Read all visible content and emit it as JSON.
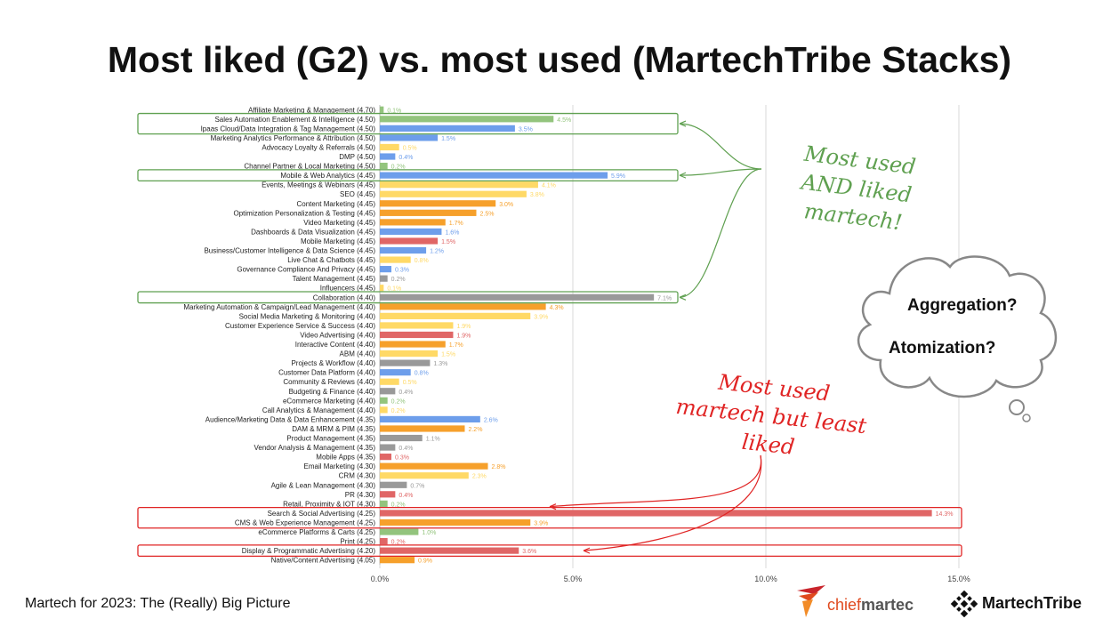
{
  "slide": {
    "title": "Most liked (G2) vs. most used (MartechTribe Stacks)",
    "footer": "Martech for 2023: The (Really) Big Picture",
    "annotation_green": "Most used AND liked martech!",
    "annotation_red": "Most used martech but least liked",
    "cloud_line_1": "Aggregation?",
    "cloud_line_2": "Atomization?",
    "logo_chiefmartec_a": "chief",
    "logo_chiefmartec_b": "martec",
    "logo_martechtribe": "MartechTribe",
    "colors": {
      "green": "#93c47d",
      "blue": "#6d9eeb",
      "yellow": "#ffd966",
      "orange": "#f6a02b",
      "red": "#e06666",
      "gray": "#999999",
      "annotation_green": "#5fa050",
      "annotation_red": "#e02424"
    }
  },
  "chart_data": {
    "type": "bar",
    "orientation": "horizontal",
    "xlim": [
      0,
      15
    ],
    "x_ticks": [
      "0.0%",
      "5.0%",
      "10.0%",
      "15.0%"
    ],
    "grid": "vertical",
    "categories": [
      "Affiliate Marketing & Management (4.70)",
      "Sales Automation Enablement & Intelligence (4.50)",
      "Ipaas Cloud/Data Integration & Tag Management (4.50)",
      "Marketing Analytics Performance & Attribution (4.50)",
      "Advocacy Loyalty & Referrals (4.50)",
      "DMP (4.50)",
      "Channel Partner & Local Marketing (4.50)",
      "Mobile & Web Analytics (4.45)",
      "Events, Meetings & Webinars (4.45)",
      "SEO (4.45)",
      "Content Marketing (4.45)",
      "Optimization Personalization & Testing (4.45)",
      "Video Marketing (4.45)",
      "Dashboards & Data Visualization (4.45)",
      "Mobile Marketing (4.45)",
      "Business/Customer Intelligence & Data Science (4.45)",
      "Live Chat & Chatbots (4.45)",
      "Governance Compliance And Privacy (4.45)",
      "Talent Management (4.45)",
      "Influencers (4.45)",
      "Collaboration (4.40)",
      "Marketing Automation & Campaign/Lead Management (4.40)",
      "Social Media Marketing & Monitoring (4.40)",
      "Customer Experience Service & Success (4.40)",
      "Video Advertising (4.40)",
      "Interactive Content (4.40)",
      "ABM (4.40)",
      "Projects & Workflow (4.40)",
      "Customer Data Platform (4.40)",
      "Community & Reviews (4.40)",
      "Budgeting & Finance (4.40)",
      "eCommerce Marketing (4.40)",
      "Call Analytics & Management (4.40)",
      "Audience/Marketing Data & Data Enhancement (4.35)",
      "DAM & MRM & PIM (4.35)",
      "Product Management (4.35)",
      "Vendor Analysis & Management (4.35)",
      "Mobile Apps (4.35)",
      "Email Marketing (4.30)",
      "CRM (4.30)",
      "Agile & Lean Management (4.30)",
      "PR (4.30)",
      "Retail, Proximity & IOT (4.30)",
      "Search & Social Advertising (4.25)",
      "CMS & Web Experience Management (4.25)",
      "eCommerce Platforms & Carts (4.25)",
      "Print (4.25)",
      "Display & Programmatic Advertising (4.20)",
      "Native/Content Advertising (4.05)"
    ],
    "values": [
      0.1,
      4.5,
      3.5,
      1.5,
      0.5,
      0.4,
      0.2,
      5.9,
      4.1,
      3.8,
      3.0,
      2.5,
      1.7,
      1.6,
      1.5,
      1.2,
      0.8,
      0.3,
      0.2,
      0.1,
      7.1,
      4.3,
      3.9,
      1.9,
      1.9,
      1.7,
      1.5,
      1.3,
      0.8,
      0.5,
      0.4,
      0.2,
      0.2,
      2.6,
      2.2,
      1.1,
      0.4,
      0.3,
      2.8,
      2.3,
      0.7,
      0.4,
      0.2,
      14.3,
      3.9,
      1.0,
      0.2,
      3.6,
      0.9
    ],
    "value_labels": [
      "0.1%",
      "4.5%",
      "3.5%",
      "1.5%",
      "0.5%",
      "0.4%",
      "0.2%",
      "5.9%",
      "4.1%",
      "3.8%",
      "3.0%",
      "2.5%",
      "1.7%",
      "1.6%",
      "1.5%",
      "1.2%",
      "0.8%",
      "0.3%",
      "0.2%",
      "0.1%",
      "7.1%",
      "4.3%",
      "3.9%",
      "1.9%",
      "1.9%",
      "1.7%",
      "1.5%",
      "1.3%",
      "0.8%",
      "0.5%",
      "0.4%",
      "0.2%",
      "0.2%",
      "2.6%",
      "2.2%",
      "1.1%",
      "0.4%",
      "0.3%",
      "2.8%",
      "2.3%",
      "0.7%",
      "0.4%",
      "0.2%",
      "14.3%",
      "3.9%",
      "1.0%",
      "0.2%",
      "3.6%",
      "0.9%"
    ],
    "bar_colors": [
      "green",
      "green",
      "blue",
      "blue",
      "yellow",
      "blue",
      "green",
      "blue",
      "yellow",
      "yellow",
      "orange",
      "orange",
      "orange",
      "blue",
      "red",
      "blue",
      "yellow",
      "blue",
      "gray",
      "yellow",
      "gray",
      "orange",
      "yellow",
      "yellow",
      "red",
      "orange",
      "yellow",
      "gray",
      "blue",
      "yellow",
      "gray",
      "green",
      "yellow",
      "blue",
      "orange",
      "gray",
      "gray",
      "red",
      "orange",
      "yellow",
      "gray",
      "red",
      "green",
      "red",
      "orange",
      "green",
      "red",
      "red",
      "orange"
    ],
    "highlight_green": [
      "Sales Automation Enablement & Intelligence (4.50)",
      "Ipaas Cloud/Data Integration & Tag Management (4.50)",
      "Mobile & Web Analytics (4.45)",
      "Collaboration (4.40)"
    ],
    "highlight_red": [
      "Search & Social Advertising (4.25)",
      "CMS & Web Experience Management (4.25)",
      "Display & Programmatic Advertising (4.20)"
    ]
  }
}
